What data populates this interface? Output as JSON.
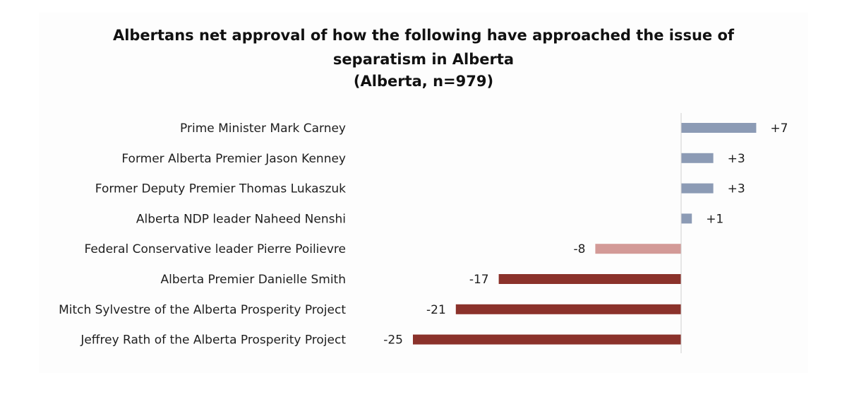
{
  "chart_data": {
    "type": "bar",
    "orientation": "horizontal",
    "title_lines": [
      "Albertans net approval of how the following have approached the issue of",
      "separatism in Alberta",
      "(Alberta, n=979)"
    ],
    "categories": [
      "Prime Minister Mark Carney",
      "Former Alberta Premier Jason Kenney",
      "Former Deputy Premier Thomas Lukaszuk",
      "Alberta NDP leader Naheed Nenshi",
      "Federal Conservative leader Pierre Poilievre",
      "Alberta Premier Danielle Smith",
      "Mitch Sylvestre of the Alberta Prosperity Project",
      "Jeffrey Rath of the Alberta Prosperity Project"
    ],
    "values": [
      7,
      3,
      3,
      1,
      -8,
      -17,
      -21,
      -25
    ],
    "value_labels": [
      "+7",
      "+3",
      "+3",
      "+1",
      "-8",
      "-17",
      "-21",
      "-25"
    ],
    "bar_colors": [
      "#8c9bb5",
      "#8c9bb5",
      "#8c9bb5",
      "#8c9bb5",
      "#d39a97",
      "#8b322b",
      "#8b322b",
      "#8b322b"
    ],
    "xlim": [
      -25,
      7
    ],
    "grid": false,
    "legend": "none"
  }
}
